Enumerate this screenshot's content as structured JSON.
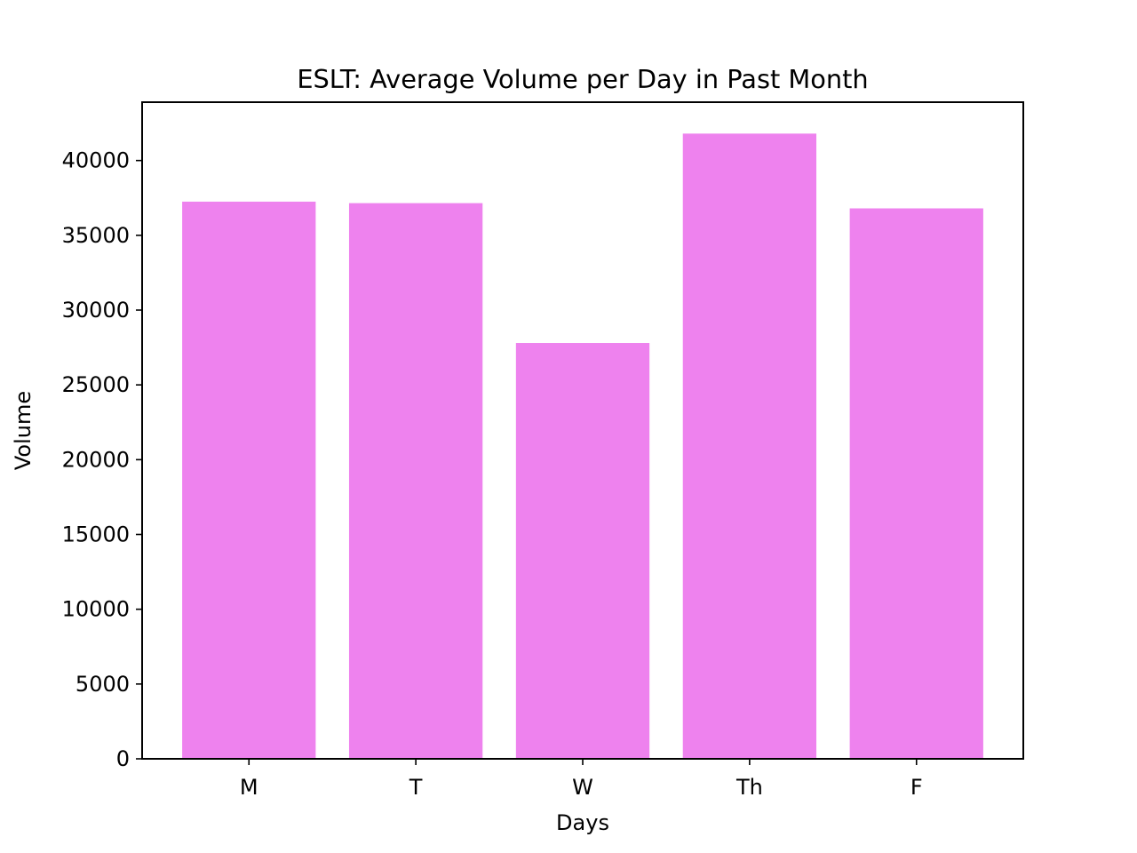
{
  "chart_data": {
    "type": "bar",
    "title": "ESLT: Average Volume per Day in Past Month",
    "xlabel": "Days",
    "ylabel": "Volume",
    "categories": [
      "M",
      "T",
      "W",
      "Th",
      "F"
    ],
    "values": [
      37250,
      37150,
      27800,
      41800,
      36800
    ],
    "ylim": [
      0,
      43900
    ],
    "yticks": [
      0,
      5000,
      10000,
      15000,
      20000,
      25000,
      30000,
      35000,
      40000
    ],
    "grid": false,
    "bar_color": "#ee82ee"
  }
}
